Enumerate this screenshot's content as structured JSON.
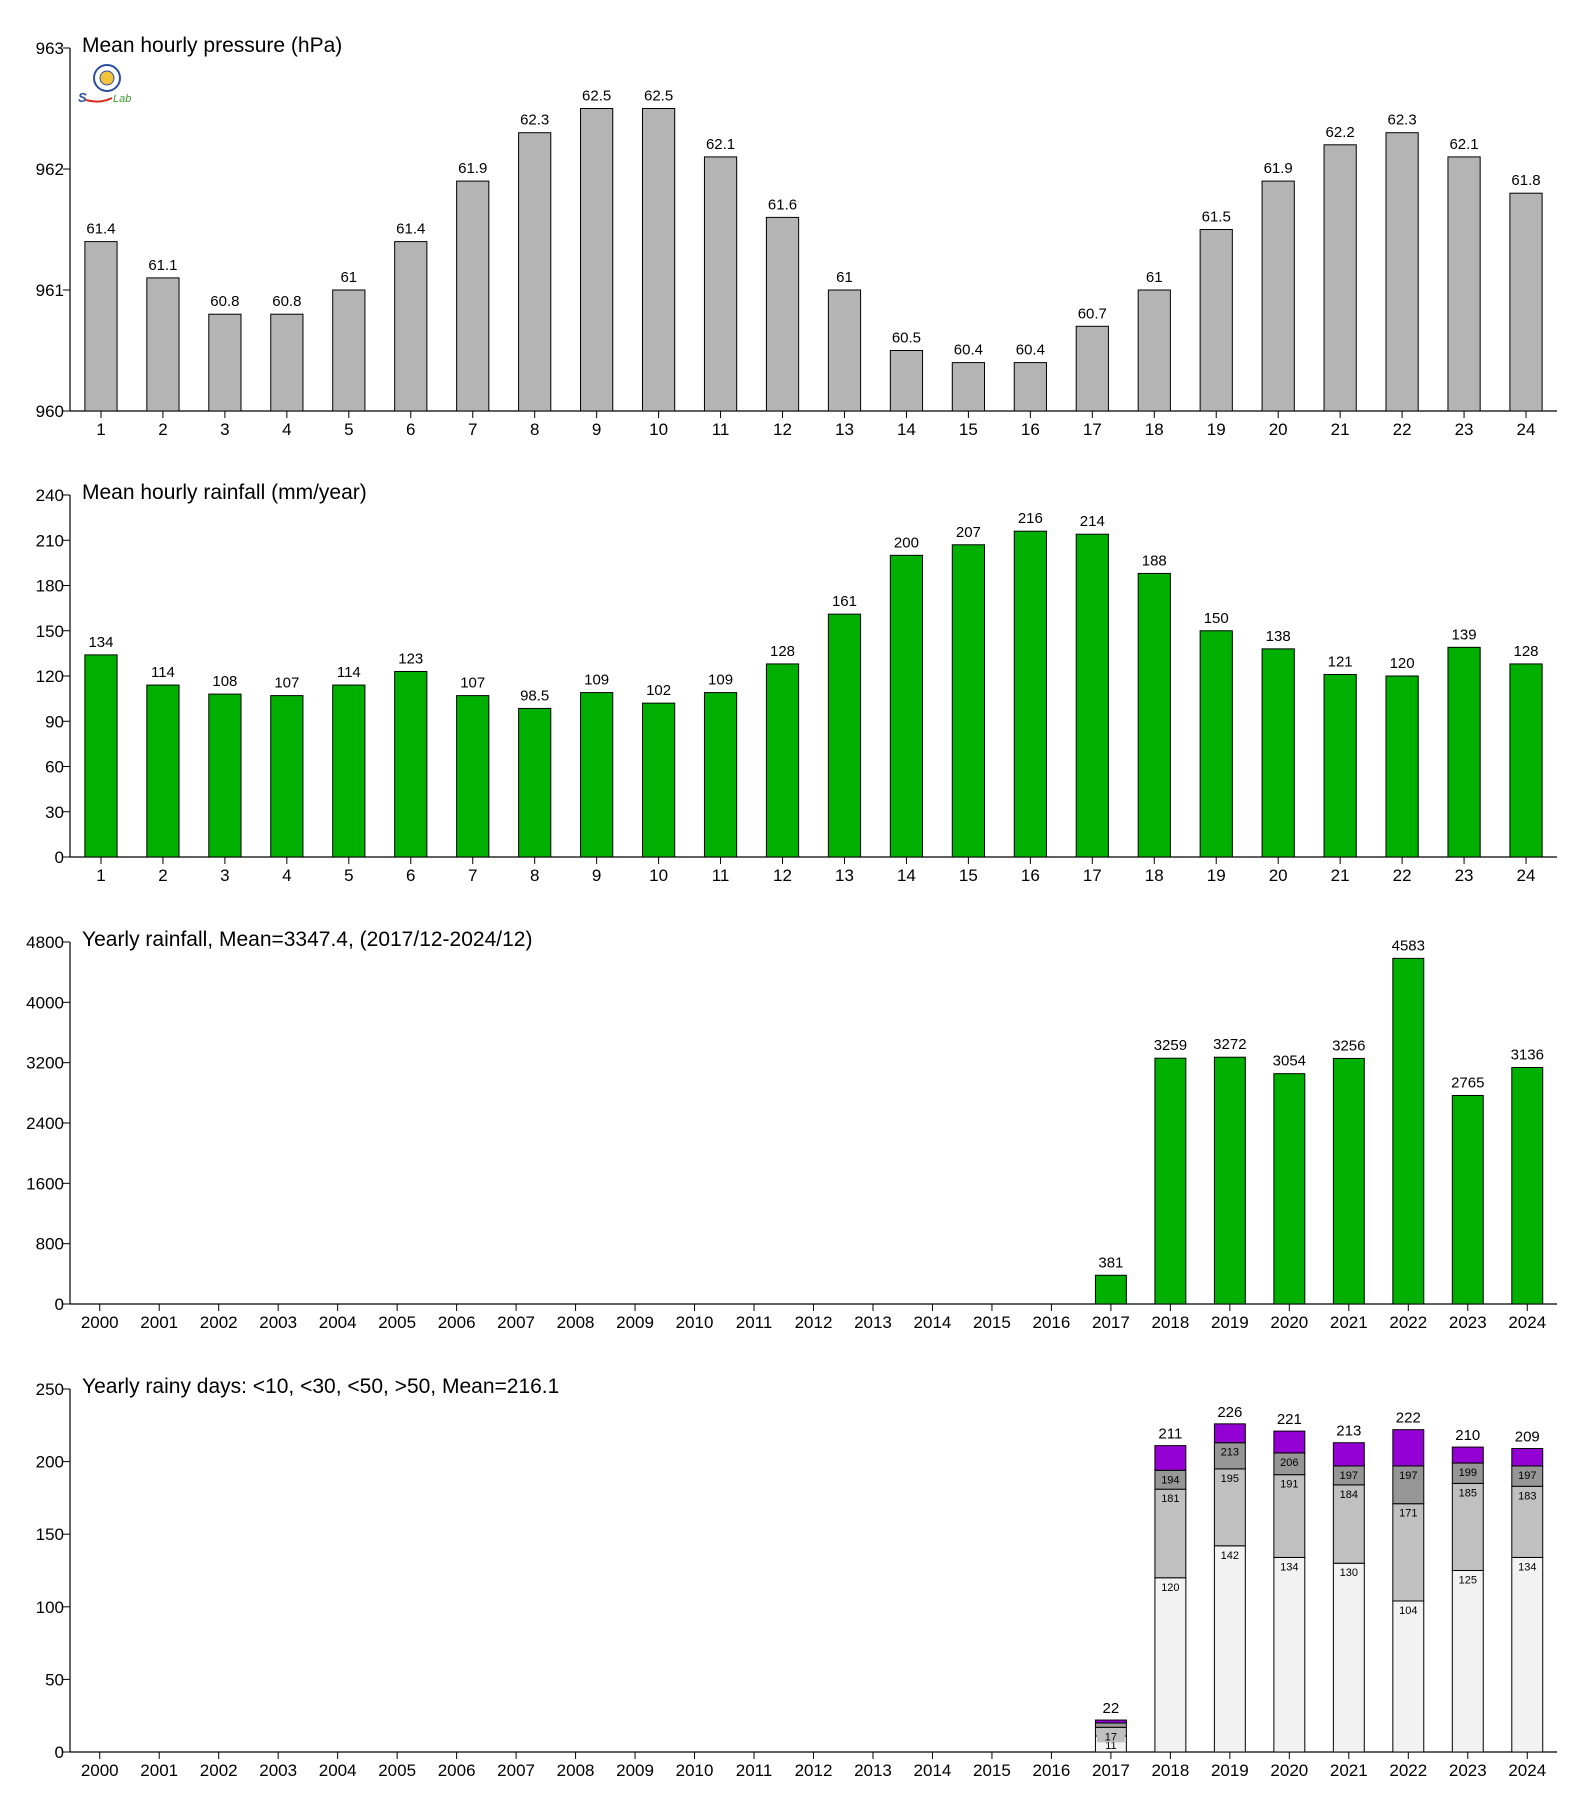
{
  "logo": {
    "text_parts": [
      "S",
      "Lab"
    ],
    "colors": {
      "seal": "#2b4fa3",
      "lab": "#3c9a2f",
      "accent": "#d62d20"
    }
  },
  "colors": {
    "gray_bar": "#b4b4b4",
    "green_bar": "#00b000",
    "purple": "#9400d3",
    "gt50_segment": "#9400d3",
    "lt50_segment": "#969696",
    "lt30_segment": "#c0c0c0",
    "lt10_segment": "#f2f2f2",
    "axis": "#000000"
  },
  "chart_data": [
    {
      "type": "bar",
      "title": "Mean hourly pressure (hPa)",
      "categories": [
        "1",
        "2",
        "3",
        "4",
        "5",
        "6",
        "7",
        "8",
        "9",
        "10",
        "11",
        "12",
        "13",
        "14",
        "15",
        "16",
        "17",
        "18",
        "19",
        "20",
        "21",
        "22",
        "23",
        "24"
      ],
      "values": [
        961.4,
        961.1,
        960.8,
        960.8,
        961.0,
        961.4,
        961.9,
        962.3,
        962.5,
        962.5,
        962.1,
        961.6,
        961.0,
        960.5,
        960.4,
        960.4,
        960.7,
        961.0,
        961.5,
        961.9,
        962.2,
        962.3,
        962.1,
        961.8
      ],
      "value_labels": [
        "61.4",
        "61.1",
        "60.8",
        "60.8",
        "61",
        "61.4",
        "61.9",
        "62.3",
        "62.5",
        "62.5",
        "62.1",
        "61.6",
        "61",
        "60.5",
        "60.4",
        "60.4",
        "60.7",
        "61",
        "61.5",
        "61.9",
        "62.2",
        "62.3",
        "62.1",
        "61.8"
      ],
      "ylim": [
        960,
        963
      ],
      "yticks": [
        "960",
        "961",
        "962",
        "963"
      ],
      "color": "#b4b4b4",
      "grid": false
    },
    {
      "type": "bar",
      "title": "Mean hourly rainfall (mm/year)",
      "categories": [
        "1",
        "2",
        "3",
        "4",
        "5",
        "6",
        "7",
        "8",
        "9",
        "10",
        "11",
        "12",
        "13",
        "14",
        "15",
        "16",
        "17",
        "18",
        "19",
        "20",
        "21",
        "22",
        "23",
        "24"
      ],
      "values": [
        134,
        114,
        108,
        107,
        114,
        123,
        107,
        98.5,
        109,
        102,
        109,
        128,
        161,
        200,
        207,
        216,
        214,
        188,
        150,
        138,
        121,
        120,
        139,
        128
      ],
      "value_labels": [
        "134",
        "114",
        "108",
        "107",
        "114",
        "123",
        "107",
        "98.5",
        "109",
        "102",
        "109",
        "128",
        "161",
        "200",
        "207",
        "216",
        "214",
        "188",
        "150",
        "138",
        "121",
        "120",
        "139",
        "128"
      ],
      "ylim": [
        0,
        240
      ],
      "yticks": [
        "0",
        "30",
        "60",
        "90",
        "120",
        "150",
        "180",
        "210",
        "240"
      ],
      "color": "#00b000",
      "grid": false
    },
    {
      "type": "bar",
      "title": "Yearly rainfall, Mean=3347.4, (2017/12-2024/12)",
      "categories": [
        "2000",
        "2001",
        "2002",
        "2003",
        "2004",
        "2005",
        "2006",
        "2007",
        "2008",
        "2009",
        "2010",
        "2011",
        "2012",
        "2013",
        "2014",
        "2015",
        "2016",
        "2017",
        "2018",
        "2019",
        "2020",
        "2021",
        "2022",
        "2023",
        "2024"
      ],
      "values": [
        null,
        null,
        null,
        null,
        null,
        null,
        null,
        null,
        null,
        null,
        null,
        null,
        null,
        null,
        null,
        null,
        null,
        381,
        3259,
        3272,
        3054,
        3256,
        4583,
        2765,
        3136
      ],
      "value_labels": [
        "",
        "",
        "",
        "",
        "",
        "",
        "",
        "",
        "",
        "",
        "",
        "",
        "",
        "",
        "",
        "",
        "",
        "381",
        "3259",
        "3272",
        "3054",
        "3256",
        "4583",
        "2765",
        "3136"
      ],
      "ylim": [
        0,
        4800
      ],
      "yticks": [
        "0",
        "800",
        "1600",
        "2400",
        "3200",
        "4000",
        "4800"
      ],
      "color": "#00b000",
      "grid": false
    },
    {
      "type": "bar",
      "stacked": true,
      "title": "Yearly rainy days: <10, <30, <50, >50, Mean=216.1",
      "categories": [
        "2000",
        "2001",
        "2002",
        "2003",
        "2004",
        "2005",
        "2006",
        "2007",
        "2008",
        "2009",
        "2010",
        "2011",
        "2012",
        "2013",
        "2014",
        "2015",
        "2016",
        "2017",
        "2018",
        "2019",
        "2020",
        "2021",
        "2022",
        "2023",
        "2024"
      ],
      "cumulative": [
        null,
        null,
        null,
        null,
        null,
        null,
        null,
        null,
        null,
        null,
        null,
        null,
        null,
        null,
        null,
        null,
        null,
        {
          "lt10": 11,
          "lt30": 17,
          "lt50": 20,
          "total": 22,
          "labels": [
            "11",
            "17",
            "",
            ""
          ],
          "total_label": "22"
        },
        {
          "lt10": 120,
          "lt30": 181,
          "lt50": 194,
          "total": 211,
          "labels": [
            "120",
            "181",
            "194"
          ],
          "total_label": "211"
        },
        {
          "lt10": 142,
          "lt30": 195,
          "lt50": 213,
          "total": 226,
          "labels": [
            "142",
            "195",
            "213"
          ],
          "total_label": "226"
        },
        {
          "lt10": 134,
          "lt30": 191,
          "lt50": 206,
          "total": 221,
          "labels": [
            "134",
            "191",
            "206"
          ],
          "total_label": "221"
        },
        {
          "lt10": 130,
          "lt30": 184,
          "lt50": 197,
          "total": 213,
          "labels": [
            "130",
            "184",
            "197"
          ],
          "total_label": "213"
        },
        {
          "lt10": 104,
          "lt30": 171,
          "lt50": 197,
          "total": 222,
          "labels": [
            "104",
            "171",
            "197"
          ],
          "total_label": "222"
        },
        {
          "lt10": 125,
          "lt30": 185,
          "lt50": 199,
          "total": 210,
          "labels": [
            "125",
            "185",
            "199"
          ],
          "total_label": "210"
        },
        {
          "lt10": 134,
          "lt30": 183,
          "lt50": 197,
          "total": 209,
          "labels": [
            "134",
            "183",
            "197"
          ],
          "total_label": "209"
        }
      ],
      "ylim": [
        0,
        250
      ],
      "yticks": [
        "0",
        "50",
        "100",
        "150",
        "200",
        "250"
      ],
      "grid": false
    }
  ]
}
